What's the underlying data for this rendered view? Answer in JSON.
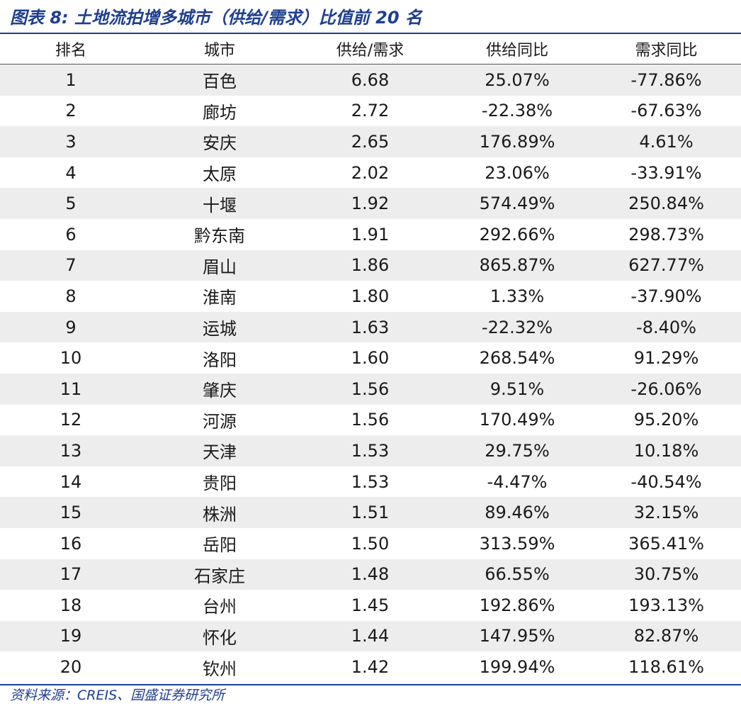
{
  "title": "图表 8:  土地流拍增多城市（供给/需求）比值前 20 名",
  "columns": [
    "排名",
    "城市",
    "供给/需求",
    "供给同比",
    "需求同比"
  ],
  "rows": [
    {
      "rank": "1",
      "city": "百色",
      "ratio": "6.68",
      "supply_yoy": "25.07%",
      "demand_yoy": "-77.86%"
    },
    {
      "rank": "2",
      "city": "廊坊",
      "ratio": "2.72",
      "supply_yoy": "-22.38%",
      "demand_yoy": "-67.63%"
    },
    {
      "rank": "3",
      "city": "安庆",
      "ratio": "2.65",
      "supply_yoy": "176.89%",
      "demand_yoy": "4.61%"
    },
    {
      "rank": "4",
      "city": "太原",
      "ratio": "2.02",
      "supply_yoy": "23.06%",
      "demand_yoy": "-33.91%"
    },
    {
      "rank": "5",
      "city": "十堰",
      "ratio": "1.92",
      "supply_yoy": "574.49%",
      "demand_yoy": "250.84%"
    },
    {
      "rank": "6",
      "city": "黔东南",
      "ratio": "1.91",
      "supply_yoy": "292.66%",
      "demand_yoy": "298.73%"
    },
    {
      "rank": "7",
      "city": "眉山",
      "ratio": "1.86",
      "supply_yoy": "865.87%",
      "demand_yoy": "627.77%"
    },
    {
      "rank": "8",
      "city": "淮南",
      "ratio": "1.80",
      "supply_yoy": "1.33%",
      "demand_yoy": "-37.90%"
    },
    {
      "rank": "9",
      "city": "运城",
      "ratio": "1.63",
      "supply_yoy": "-22.32%",
      "demand_yoy": "-8.40%"
    },
    {
      "rank": "10",
      "city": "洛阳",
      "ratio": "1.60",
      "supply_yoy": "268.54%",
      "demand_yoy": "91.29%"
    },
    {
      "rank": "11",
      "city": "肇庆",
      "ratio": "1.56",
      "supply_yoy": "9.51%",
      "demand_yoy": "-26.06%"
    },
    {
      "rank": "12",
      "city": "河源",
      "ratio": "1.56",
      "supply_yoy": "170.49%",
      "demand_yoy": "95.20%"
    },
    {
      "rank": "13",
      "city": "天津",
      "ratio": "1.53",
      "supply_yoy": "29.75%",
      "demand_yoy": "10.18%"
    },
    {
      "rank": "14",
      "city": "贵阳",
      "ratio": "1.53",
      "supply_yoy": "-4.47%",
      "demand_yoy": "-40.54%"
    },
    {
      "rank": "15",
      "city": "株洲",
      "ratio": "1.51",
      "supply_yoy": "89.46%",
      "demand_yoy": "32.15%"
    },
    {
      "rank": "16",
      "city": "岳阳",
      "ratio": "1.50",
      "supply_yoy": "313.59%",
      "demand_yoy": "365.41%"
    },
    {
      "rank": "17",
      "city": "石家庄",
      "ratio": "1.48",
      "supply_yoy": "66.55%",
      "demand_yoy": "30.75%"
    },
    {
      "rank": "18",
      "city": "台州",
      "ratio": "1.45",
      "supply_yoy": "192.86%",
      "demand_yoy": "193.13%"
    },
    {
      "rank": "19",
      "city": "怀化",
      "ratio": "1.44",
      "supply_yoy": "147.95%",
      "demand_yoy": "82.87%"
    },
    {
      "rank": "20",
      "city": "钦州",
      "ratio": "1.42",
      "supply_yoy": "199.94%",
      "demand_yoy": "118.61%"
    }
  ],
  "source": "资料来源：CREIS、国盛证券研究所",
  "colors": {
    "accent": "#1f3f8f",
    "row_shade": "#ededed"
  }
}
